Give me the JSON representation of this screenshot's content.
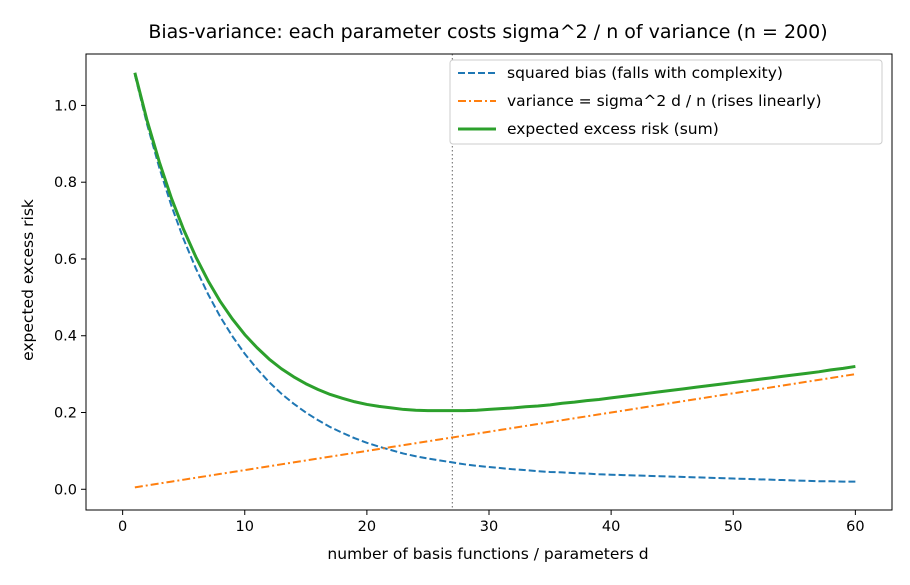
{
  "chart_data": {
    "type": "line",
    "title": "Bias-variance: each parameter costs sigma^2 / n of variance (n = 200)",
    "xlabel": "number of basis functions / parameters d",
    "ylabel": "expected excess risk",
    "xlim": [
      -3.0,
      63.0
    ],
    "ylim": [
      -0.054,
      1.134
    ],
    "xticks": [
      0,
      10,
      20,
      30,
      40,
      50,
      60
    ],
    "xtick_labels": [
      "0",
      "10",
      "20",
      "30",
      "40",
      "50",
      "60"
    ],
    "yticks": [
      0.0,
      0.2,
      0.4,
      0.6,
      0.8,
      1.0
    ],
    "ytick_labels": [
      "0.0",
      "0.2",
      "0.4",
      "0.6",
      "0.8",
      "1.0"
    ],
    "grid": false,
    "legend_position": "top-right",
    "vline": {
      "x": 27,
      "color": "#808080",
      "style": "dotted"
    },
    "x": [
      1,
      2,
      3,
      4,
      5,
      6,
      7,
      8,
      9,
      10,
      11,
      12,
      13,
      14,
      15,
      16,
      17,
      18,
      19,
      20,
      21,
      22,
      23,
      24,
      25,
      26,
      27,
      28,
      29,
      30,
      31,
      32,
      33,
      34,
      35,
      36,
      37,
      38,
      39,
      40,
      41,
      42,
      43,
      44,
      45,
      46,
      47,
      48,
      49,
      50,
      51,
      52,
      53,
      54,
      55,
      56,
      57,
      58,
      59,
      60
    ],
    "series": [
      {
        "name": "squared bias (falls with complexity)",
        "color": "#1f77b4",
        "style": "dashed",
        "values": [
          1.08,
          0.951,
          0.838,
          0.738,
          0.651,
          0.575,
          0.508,
          0.449,
          0.398,
          0.353,
          0.314,
          0.279,
          0.249,
          0.223,
          0.2,
          0.18,
          0.162,
          0.147,
          0.133,
          0.121,
          0.111,
          0.102,
          0.093,
          0.086,
          0.08,
          0.075,
          0.07,
          0.065,
          0.061,
          0.058,
          0.055,
          0.052,
          0.05,
          0.047,
          0.045,
          0.044,
          0.042,
          0.041,
          0.039,
          0.038,
          0.037,
          0.036,
          0.035,
          0.034,
          0.033,
          0.032,
          0.031,
          0.03,
          0.029,
          0.028,
          0.027,
          0.026,
          0.025,
          0.024,
          0.023,
          0.022,
          0.021,
          0.021,
          0.02,
          0.02
        ]
      },
      {
        "name": "variance = sigma^2 d / n (rises linearly)",
        "color": "#ff7f0e",
        "style": "dashdot",
        "values": [
          0.005,
          0.01,
          0.015,
          0.02,
          0.025,
          0.03,
          0.035,
          0.04,
          0.045,
          0.05,
          0.055,
          0.06,
          0.065,
          0.07,
          0.075,
          0.08,
          0.085,
          0.09,
          0.095,
          0.1,
          0.105,
          0.11,
          0.115,
          0.12,
          0.125,
          0.13,
          0.135,
          0.14,
          0.145,
          0.15,
          0.155,
          0.16,
          0.165,
          0.17,
          0.175,
          0.18,
          0.185,
          0.19,
          0.195,
          0.2,
          0.205,
          0.21,
          0.215,
          0.22,
          0.225,
          0.23,
          0.235,
          0.24,
          0.245,
          0.25,
          0.255,
          0.26,
          0.265,
          0.27,
          0.275,
          0.28,
          0.285,
          0.29,
          0.295,
          0.3
        ]
      },
      {
        "name": "expected excess risk (sum)",
        "color": "#2ca02c",
        "style": "solid",
        "values": [
          1.085,
          0.961,
          0.853,
          0.758,
          0.676,
          0.605,
          0.543,
          0.489,
          0.443,
          0.403,
          0.369,
          0.339,
          0.314,
          0.293,
          0.275,
          0.26,
          0.247,
          0.237,
          0.228,
          0.221,
          0.216,
          0.212,
          0.208,
          0.206,
          0.205,
          0.205,
          0.205,
          0.205,
          0.206,
          0.208,
          0.21,
          0.212,
          0.215,
          0.217,
          0.22,
          0.224,
          0.227,
          0.231,
          0.234,
          0.238,
          0.242,
          0.246,
          0.25,
          0.254,
          0.258,
          0.262,
          0.266,
          0.27,
          0.274,
          0.278,
          0.282,
          0.286,
          0.29,
          0.294,
          0.298,
          0.302,
          0.306,
          0.311,
          0.315,
          0.32
        ]
      }
    ]
  }
}
